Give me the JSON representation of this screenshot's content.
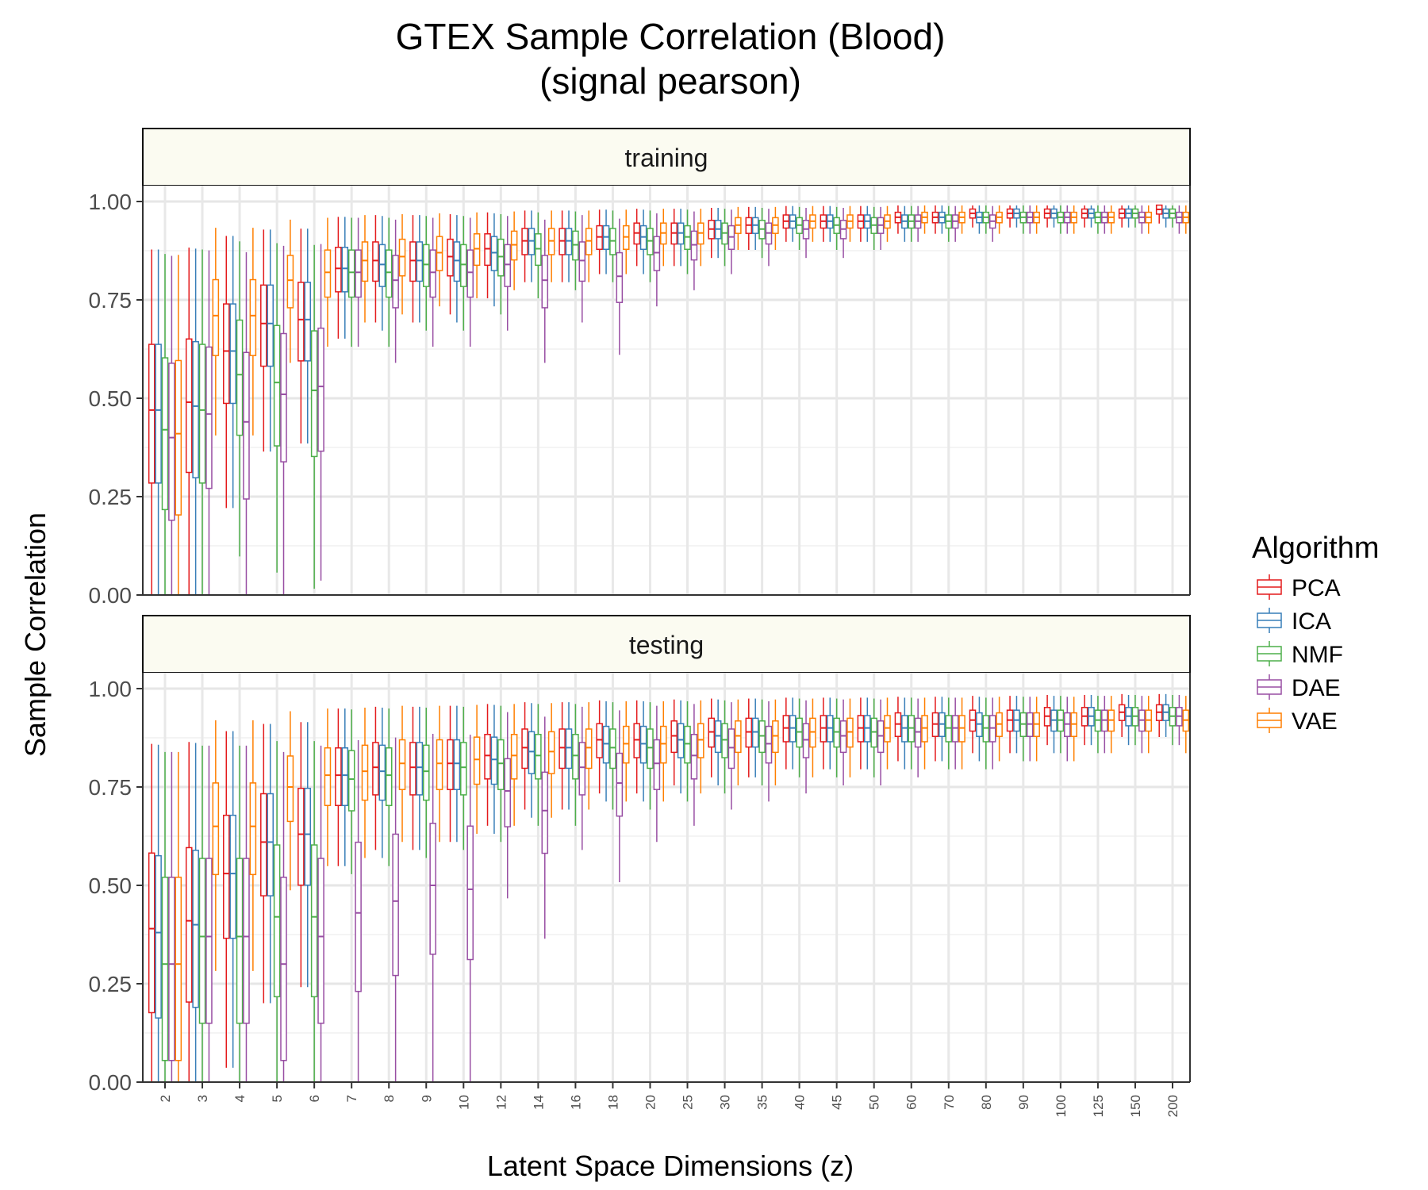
{
  "chart_data": {
    "type": "boxplot",
    "title": "GTEX Sample Correlation (Blood)",
    "subtitle": "(signal pearson)",
    "xlabel": "Latent Space Dimensions (z)",
    "ylabel": "Sample Correlation",
    "ylim": [
      0,
      1
    ],
    "yticks": [
      "0.00",
      "0.25",
      "0.50",
      "0.75",
      "1.00"
    ],
    "categories": [
      "2",
      "3",
      "4",
      "5",
      "6",
      "7",
      "8",
      "9",
      "10",
      "12",
      "14",
      "16",
      "18",
      "20",
      "25",
      "30",
      "35",
      "40",
      "45",
      "50",
      "60",
      "70",
      "80",
      "90",
      "100",
      "125",
      "150",
      "200"
    ],
    "grid": true,
    "legend": {
      "title": "Algorithm",
      "position": "right",
      "items": [
        {
          "name": "PCA",
          "color": "#e41a1c"
        },
        {
          "name": "ICA",
          "color": "#377eb8"
        },
        {
          "name": "NMF",
          "color": "#4daf4a"
        },
        {
          "name": "DAE",
          "color": "#984ea3"
        },
        {
          "name": "VAE",
          "color": "#ff7f00"
        }
      ]
    },
    "panels": [
      {
        "label": "training",
        "series": [
          {
            "name": "PCA",
            "medians": [
              0.47,
              0.49,
              0.62,
              0.69,
              0.7,
              0.83,
              0.85,
              0.85,
              0.86,
              0.88,
              0.9,
              0.9,
              0.91,
              0.92,
              0.92,
              0.93,
              0.94,
              0.95,
              0.95,
              0.95,
              0.96,
              0.96,
              0.97,
              0.97,
              0.97,
              0.97,
              0.97,
              0.98
            ]
          },
          {
            "name": "ICA",
            "medians": [
              0.47,
              0.48,
              0.62,
              0.69,
              0.7,
              0.83,
              0.84,
              0.85,
              0.85,
              0.87,
              0.9,
              0.9,
              0.91,
              0.91,
              0.92,
              0.93,
              0.94,
              0.95,
              0.95,
              0.95,
              0.95,
              0.96,
              0.96,
              0.97,
              0.97,
              0.97,
              0.97,
              0.97
            ]
          },
          {
            "name": "NMF",
            "medians": [
              0.42,
              0.47,
              0.56,
              0.54,
              0.52,
              0.82,
              0.82,
              0.84,
              0.84,
              0.86,
              0.88,
              0.89,
              0.9,
              0.9,
              0.91,
              0.92,
              0.93,
              0.94,
              0.94,
              0.94,
              0.95,
              0.95,
              0.96,
              0.96,
              0.96,
              0.96,
              0.97,
              0.97
            ]
          },
          {
            "name": "DAE",
            "medians": [
              0.4,
              0.46,
              0.44,
              0.51,
              0.53,
              0.82,
              0.8,
              0.82,
              0.82,
              0.84,
              0.8,
              0.85,
              0.81,
              0.87,
              0.89,
              0.91,
              0.92,
              0.93,
              0.93,
              0.94,
              0.95,
              0.95,
              0.95,
              0.96,
              0.96,
              0.96,
              0.96,
              0.96
            ]
          },
          {
            "name": "VAE",
            "medians": [
              0.41,
              0.71,
              0.71,
              0.8,
              0.82,
              0.85,
              0.86,
              0.87,
              0.88,
              0.89,
              0.9,
              0.9,
              0.91,
              0.92,
              0.92,
              0.94,
              0.94,
              0.95,
              0.95,
              0.95,
              0.96,
              0.96,
              0.96,
              0.96,
              0.96,
              0.96,
              0.96,
              0.96
            ]
          }
        ]
      },
      {
        "label": "testing",
        "series": [
          {
            "name": "PCA",
            "medians": [
              0.39,
              0.41,
              0.53,
              0.61,
              0.63,
              0.78,
              0.8,
              0.8,
              0.81,
              0.83,
              0.85,
              0.85,
              0.87,
              0.87,
              0.88,
              0.89,
              0.89,
              0.9,
              0.9,
              0.9,
              0.91,
              0.91,
              0.92,
              0.92,
              0.93,
              0.93,
              0.94,
              0.94
            ]
          },
          {
            "name": "ICA",
            "medians": [
              0.38,
              0.4,
              0.53,
              0.61,
              0.63,
              0.78,
              0.79,
              0.8,
              0.81,
              0.82,
              0.84,
              0.85,
              0.86,
              0.86,
              0.87,
              0.88,
              0.89,
              0.9,
              0.9,
              0.9,
              0.9,
              0.91,
              0.91,
              0.92,
              0.92,
              0.93,
              0.93,
              0.94
            ]
          },
          {
            "name": "NMF",
            "medians": [
              0.3,
              0.37,
              0.37,
              0.42,
              0.42,
              0.77,
              0.78,
              0.79,
              0.8,
              0.81,
              0.83,
              0.83,
              0.85,
              0.85,
              0.86,
              0.87,
              0.88,
              0.89,
              0.89,
              0.89,
              0.9,
              0.9,
              0.9,
              0.91,
              0.92,
              0.92,
              0.93,
              0.93
            ]
          },
          {
            "name": "DAE",
            "medians": [
              0.3,
              0.37,
              0.37,
              0.3,
              0.37,
              0.43,
              0.46,
              0.5,
              0.49,
              0.74,
              0.69,
              0.8,
              0.76,
              0.81,
              0.83,
              0.85,
              0.86,
              0.87,
              0.88,
              0.88,
              0.89,
              0.9,
              0.9,
              0.91,
              0.91,
              0.92,
              0.92,
              0.93
            ]
          },
          {
            "name": "VAE",
            "medians": [
              0.3,
              0.65,
              0.65,
              0.75,
              0.78,
              0.79,
              0.81,
              0.81,
              0.82,
              0.83,
              0.84,
              0.85,
              0.86,
              0.86,
              0.87,
              0.88,
              0.88,
              0.89,
              0.89,
              0.9,
              0.9,
              0.9,
              0.91,
              0.91,
              0.91,
              0.92,
              0.92,
              0.92
            ]
          }
        ]
      }
    ]
  }
}
